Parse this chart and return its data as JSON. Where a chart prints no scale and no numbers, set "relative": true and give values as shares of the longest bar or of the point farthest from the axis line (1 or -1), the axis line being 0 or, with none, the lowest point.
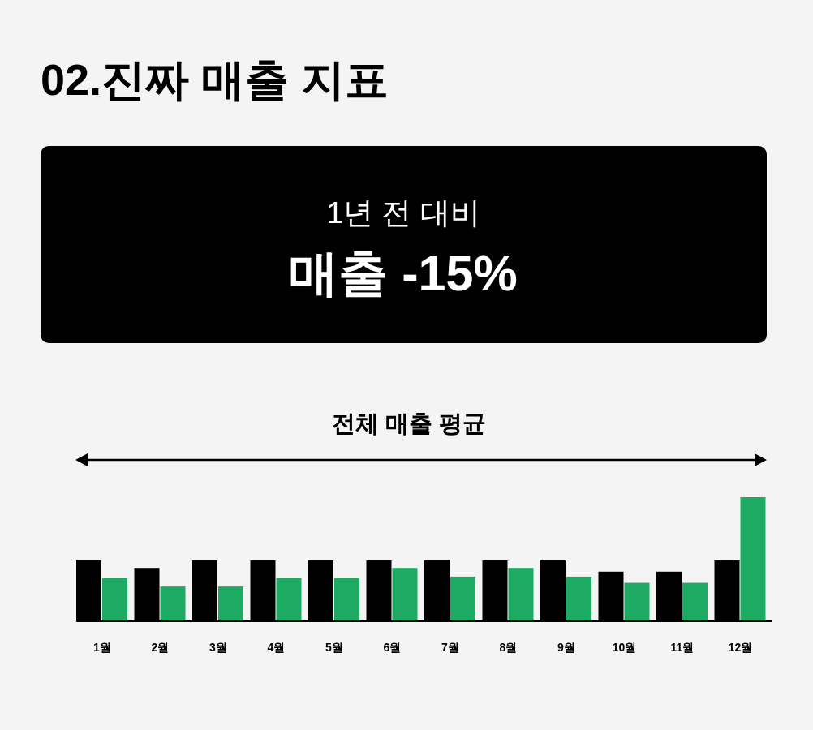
{
  "chart_data": [
    {
      "type": "other",
      "title": "02.진짜 매출 지표",
      "annotations": [
        "1년 전 대비",
        "매출 -15%"
      ]
    },
    {
      "type": "bar",
      "title": "전체 매출 평균",
      "categories": [
        "1월",
        "2월",
        "3월",
        "4월",
        "5월",
        "6월",
        "7월",
        "8월",
        "9월",
        "10월",
        "11월",
        "12월"
      ],
      "relative": true,
      "series": [
        {
          "color": "#000000",
          "values": [
            0.49,
            0.43,
            0.49,
            0.49,
            0.49,
            0.49,
            0.49,
            0.49,
            0.49,
            0.4,
            0.4,
            0.49
          ]
        },
        {
          "color": "#1daa62",
          "values": [
            0.35,
            0.28,
            0.28,
            0.35,
            0.35,
            0.43,
            0.36,
            0.43,
            0.36,
            0.31,
            0.31,
            1
          ]
        }
      ]
    }
  ]
}
